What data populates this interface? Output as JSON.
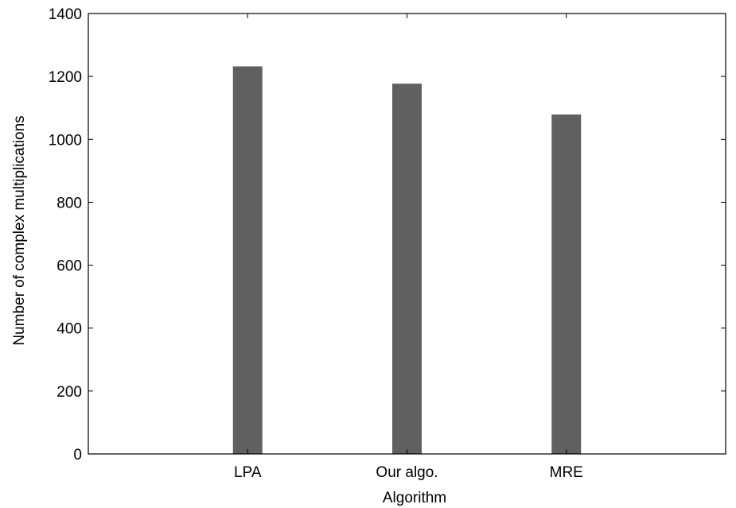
{
  "chart_data": {
    "type": "bar",
    "categories": [
      "LPA",
      "Our algo.",
      "MRE"
    ],
    "values": [
      1232,
      1177,
      1079
    ],
    "xlabel": "Algorithm",
    "ylabel": "Number of complex multiplications",
    "ylim": [
      0,
      1400
    ],
    "yticks": [
      0,
      200,
      400,
      600,
      800,
      1000,
      1200,
      1400
    ],
    "grid": false,
    "bar_color": "#606060"
  }
}
